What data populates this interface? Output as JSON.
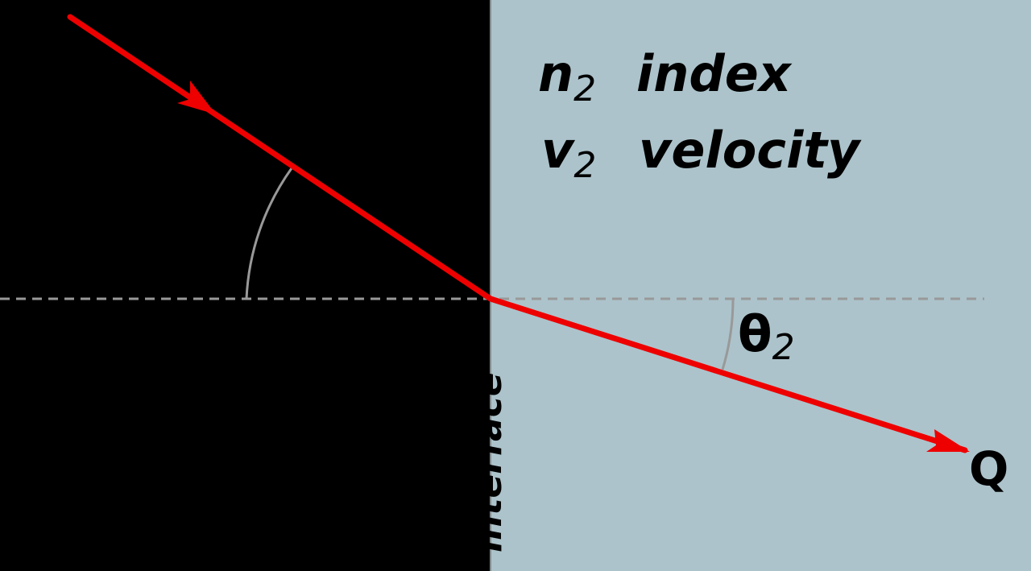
{
  "media2": {
    "index_symbol": "n",
    "index_subscript": "2",
    "index_label": "index",
    "velocity_symbol": "v",
    "velocity_subscript": "2",
    "velocity_label": "velocity"
  },
  "angle2": {
    "symbol": "θ",
    "subscript": "2"
  },
  "interface_label": "interface",
  "point_label": "Q",
  "colors": {
    "medium1": "#000000",
    "medium2": "#acc3cb",
    "ray": "#ee0000",
    "normal": "#999999",
    "arc": "#999999",
    "text": "#000000"
  }
}
